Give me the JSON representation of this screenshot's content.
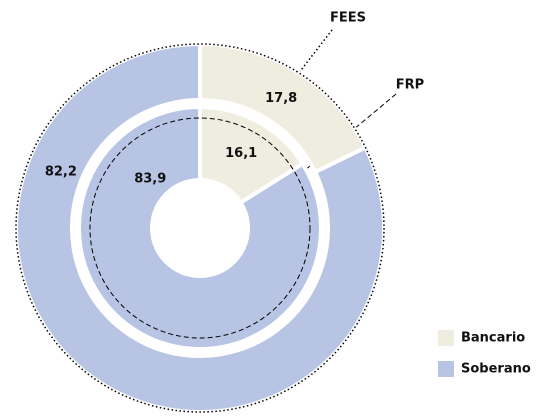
{
  "chart_data": {
    "type": "donut",
    "categories": [
      "Bancario",
      "Soberano"
    ],
    "colors": [
      "#efece0",
      "#b7c4e4"
    ],
    "rings": [
      {
        "name": "FEES",
        "values": [
          17.8,
          82.2
        ],
        "value_labels": [
          "17,8",
          "82,2"
        ]
      },
      {
        "name": "FRP",
        "values": [
          16.1,
          83.9
        ],
        "value_labels": [
          "16,1",
          "83,9"
        ]
      }
    ],
    "legend": "bottom-right"
  }
}
